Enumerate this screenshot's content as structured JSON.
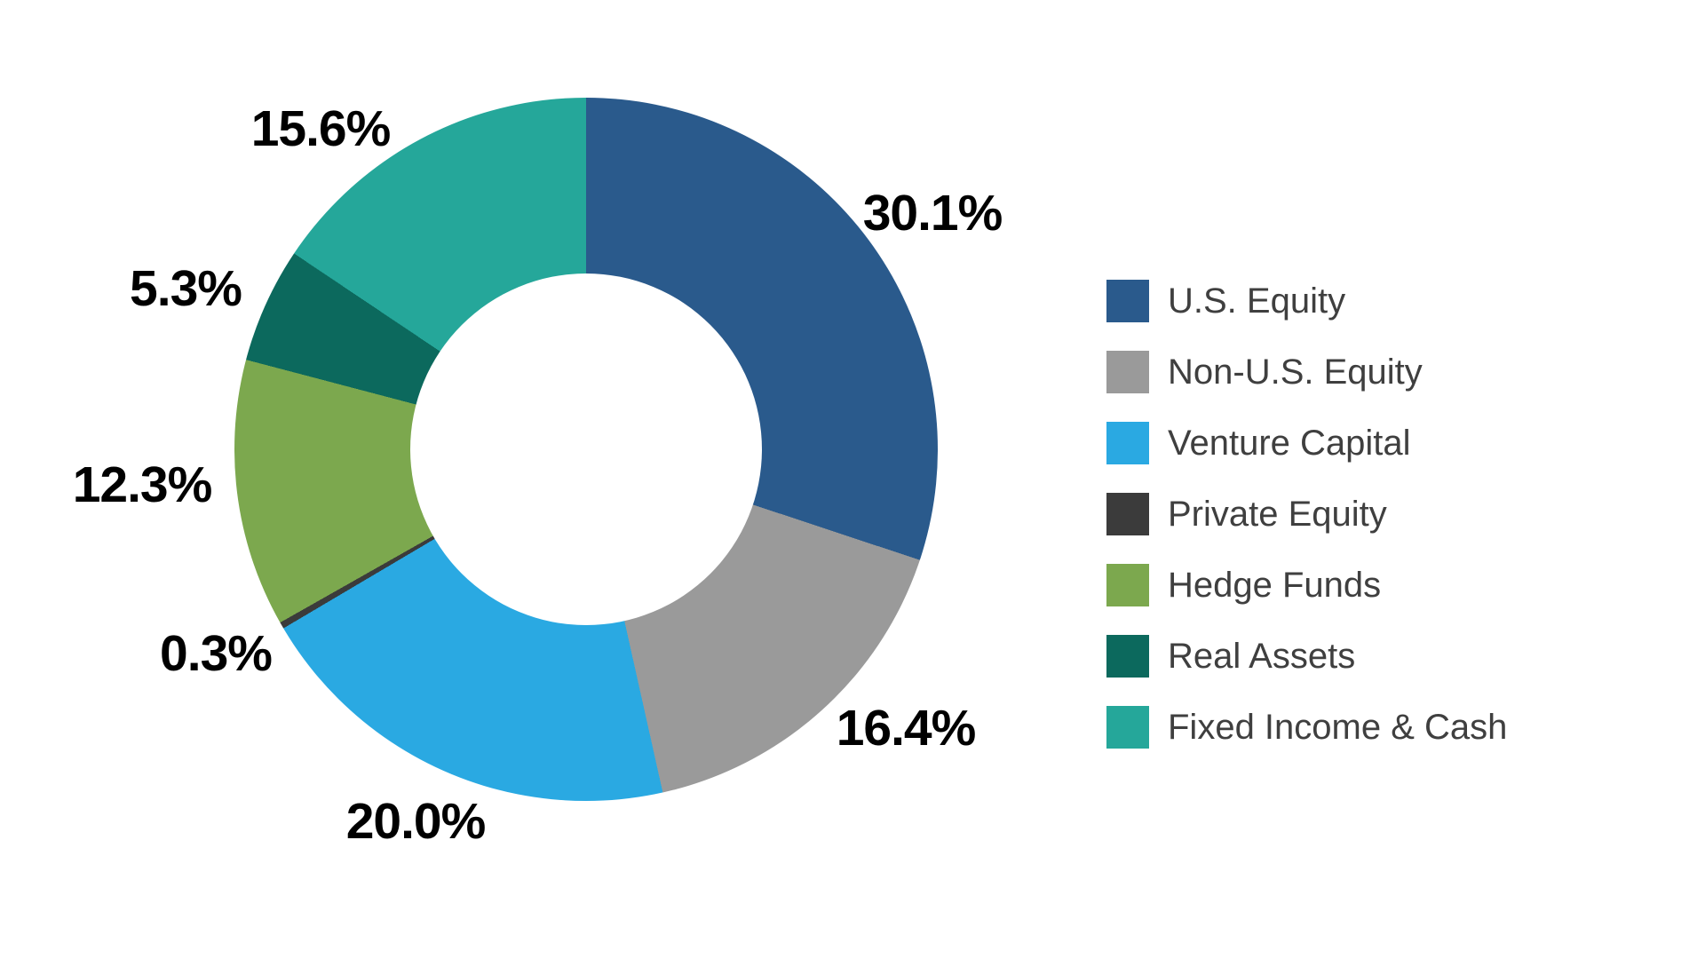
{
  "colors": {
    "background": "#FFFFFF",
    "slice_label_text": "#000000",
    "legend_text": "#3F3F3F"
  },
  "chart_data": {
    "type": "pie",
    "subtype": "donut",
    "direction": "clockwise",
    "start_angle_deg": 0,
    "donut_hole_ratio": 0.5,
    "legend_position": "right",
    "grid": false,
    "series": [
      {
        "name": "U.S. Equity",
        "value": 30.1,
        "label": "30.1%",
        "color": "#2A5A8C"
      },
      {
        "name": "Non-U.S. Equity",
        "value": 16.4,
        "label": "16.4%",
        "color": "#9A9A9A"
      },
      {
        "name": "Venture Capital",
        "value": 20.0,
        "label": "20.0%",
        "color": "#2AA9E2"
      },
      {
        "name": "Private Equity",
        "value": 0.3,
        "label": "0.3%",
        "color": "#3B3B3B"
      },
      {
        "name": "Hedge Funds",
        "value": 12.3,
        "label": "12.3%",
        "color": "#7CA84E"
      },
      {
        "name": "Real Assets",
        "value": 5.3,
        "label": "5.3%",
        "color": "#0C695D"
      },
      {
        "name": "Fixed Income & Cash",
        "value": 15.6,
        "label": "15.6%",
        "color": "#25A79A"
      }
    ]
  }
}
